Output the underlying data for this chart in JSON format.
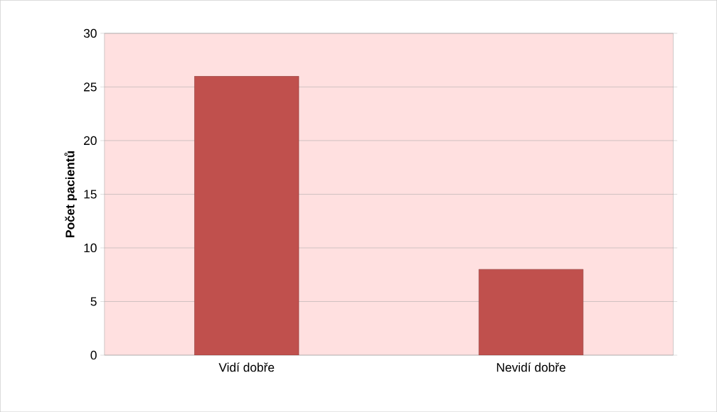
{
  "chart_data": {
    "type": "bar",
    "ylabel": "Počet pacientů",
    "categories": [
      "Vidí dobře",
      "Nevidí dobře"
    ],
    "values": [
      26,
      8
    ],
    "color": "#c0504d",
    "ylim": [
      0,
      30
    ],
    "yticks": [
      0,
      5,
      10,
      15,
      20,
      25,
      30
    ],
    "grid": "y"
  }
}
